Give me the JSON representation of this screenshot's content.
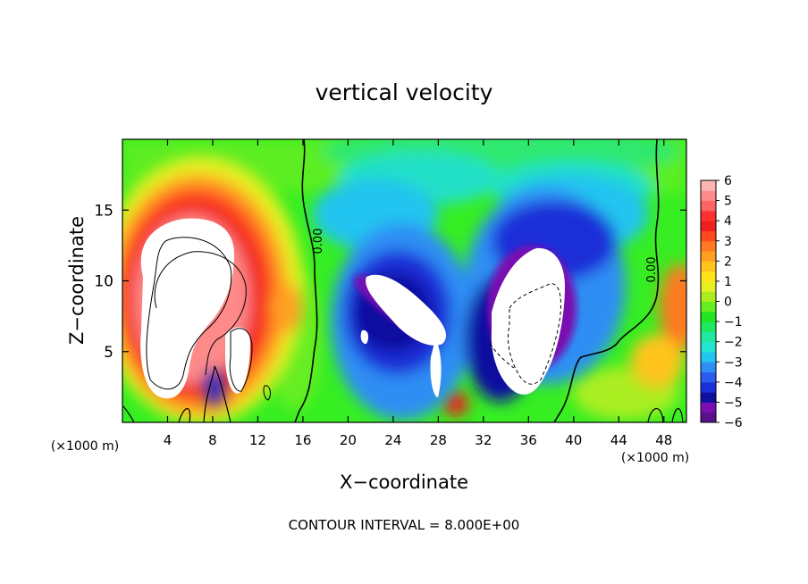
{
  "chart_data": {
    "type": "heatmap",
    "title": "vertical velocity",
    "xlabel": "X−coordinate",
    "ylabel": "Z−coordinate",
    "x_unit": "(×1000 m)",
    "z_unit": "(×1000 m)",
    "xlim": [
      0,
      50
    ],
    "ylim": [
      0,
      20
    ],
    "x_ticks": [
      4,
      8,
      12,
      16,
      20,
      24,
      28,
      32,
      36,
      40,
      44,
      48
    ],
    "y_ticks": [
      5,
      10,
      15
    ],
    "footer": "CONTOUR INTERVAL = 8.000E+00",
    "contour_labels": [
      "0.00",
      "0.00"
    ],
    "colorbar": {
      "min": -6,
      "max": 6,
      "labels": [
        "6",
        "5",
        "4",
        "3",
        "2",
        "1",
        "0",
        "−1",
        "−2",
        "−3",
        "−4",
        "−5",
        "−6"
      ],
      "colors": [
        "#5a0f8c",
        "#7a0fb0",
        "#1010a0",
        "#1a2fd8",
        "#2a5cf0",
        "#2f8ef4",
        "#22c4f0",
        "#22e6d2",
        "#20e8a0",
        "#1ee860",
        "#22e622",
        "#66ee22",
        "#aaee22",
        "#e6f022",
        "#ffe41c",
        "#ffc41c",
        "#ffa020",
        "#ff7a20",
        "#ff4a20",
        "#f01e1e",
        "#ff3030",
        "#ff6464",
        "#ff8a8a",
        "#ffb4b4"
      ]
    },
    "features": [
      {
        "desc": "updraft core",
        "x": [
          1,
          13
        ],
        "z": [
          1.5,
          14.5
        ],
        "w": "> 6"
      },
      {
        "desc": "downdraft band",
        "x": [
          18,
          30
        ],
        "z": [
          1,
          11
        ],
        "w": "< -6"
      },
      {
        "desc": "updraft core",
        "x": [
          33,
          41
        ],
        "z": [
          2,
          12
        ],
        "w": "> 6"
      },
      {
        "desc": "downdraft arch",
        "x": [
          20,
          44
        ],
        "z": [
          3,
          17
        ],
        "w": "-3 to -6"
      }
    ]
  }
}
